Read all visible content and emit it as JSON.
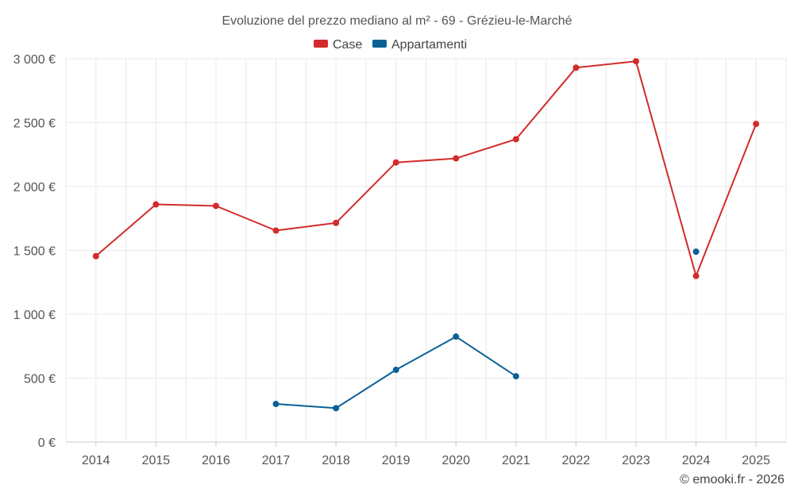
{
  "chart_data": {
    "type": "line",
    "title": "Evoluzione del prezzo mediano al m² - 69 - Grézieu-le-Marché",
    "x": [
      "2014",
      "2015",
      "2016",
      "2017",
      "2018",
      "2019",
      "2020",
      "2021",
      "2022",
      "2023",
      "2024",
      "2025"
    ],
    "ylim": [
      0,
      3000
    ],
    "yticks": [
      0,
      500,
      1000,
      1500,
      2000,
      2500,
      3000
    ],
    "ytick_labels": [
      "0 €",
      "500 €",
      "1 000 €",
      "1 500 €",
      "2 000 €",
      "2 500 €",
      "3 000 €"
    ],
    "grid": true,
    "legend_position": "top-center",
    "series": [
      {
        "name": "Case",
        "color": "#d22b2b",
        "values": [
          1455,
          1860,
          1848,
          1655,
          1715,
          2188,
          2220,
          2370,
          2930,
          2980,
          1300,
          2490
        ]
      },
      {
        "name": "Appartamenti",
        "color": "#0a6196",
        "values": [
          null,
          null,
          null,
          298,
          265,
          565,
          825,
          515,
          null,
          null,
          1490,
          null
        ]
      }
    ],
    "credit": "© emooki.fr - 2026"
  }
}
